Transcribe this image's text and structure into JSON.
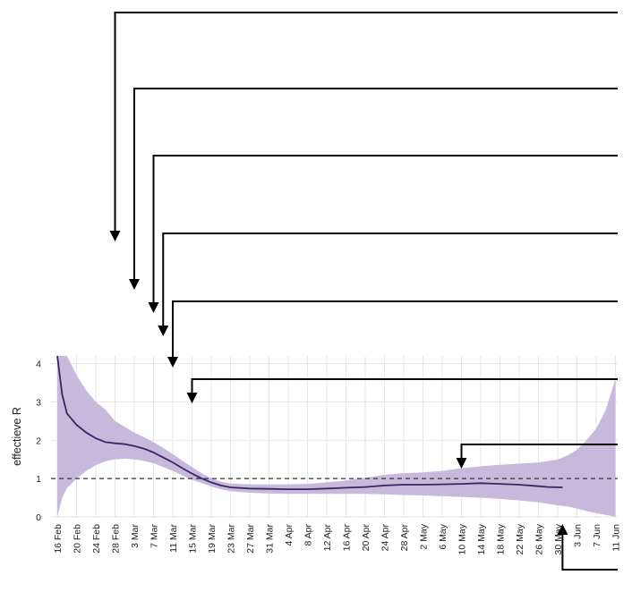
{
  "chart_data": {
    "type": "area",
    "ylabel": "effectieve R",
    "xlabel": "",
    "ylim": [
      0,
      4.2
    ],
    "yticks": [
      "0",
      "1",
      "2",
      "3",
      "4"
    ],
    "x_start": "16 Feb",
    "x_end": "11 Jun",
    "xticks": [
      "16 Feb",
      "20 Feb",
      "24 Feb",
      "28 Feb",
      "3 Mar",
      "7 Mar",
      "11 Mar",
      "15 Mar",
      "19 Mar",
      "23 Mar",
      "27 Mar",
      "31 Mar",
      "4 Apr",
      "8 Apr",
      "12 Apr",
      "16 Apr",
      "20 Apr",
      "24 Apr",
      "28 Apr",
      "2 May",
      "6 May",
      "10 May",
      "14 May",
      "18 May",
      "22 May",
      "26 May",
      "30 May",
      "3 Jun",
      "7 Jun",
      "11 Jun"
    ],
    "grid": true,
    "reference_line": {
      "y": 1,
      "style": "dashed"
    },
    "colors": {
      "line": "#3a2466",
      "band": "#c7b9db",
      "reference": "#333333",
      "grid": "#e6e6e6",
      "annotation": "#000000"
    },
    "series": [
      {
        "type": "line",
        "points": [
          [
            "16 Feb",
            4.2
          ],
          [
            "17 Feb",
            3.2
          ],
          [
            "18 Feb",
            2.7
          ],
          [
            "20 Feb",
            2.4
          ],
          [
            "22 Feb",
            2.2
          ],
          [
            "24 Feb",
            2.05
          ],
          [
            "26 Feb",
            1.95
          ],
          [
            "28 Feb",
            1.92
          ],
          [
            "1 Mar",
            1.9
          ],
          [
            "3 Mar",
            1.85
          ],
          [
            "5 Mar",
            1.78
          ],
          [
            "7 Mar",
            1.68
          ],
          [
            "9 Mar",
            1.55
          ],
          [
            "11 Mar",
            1.42
          ],
          [
            "13 Mar",
            1.27
          ],
          [
            "15 Mar",
            1.13
          ],
          [
            "17 Mar",
            1.0
          ],
          [
            "19 Mar",
            0.9
          ],
          [
            "21 Mar",
            0.82
          ],
          [
            "23 Mar",
            0.77
          ],
          [
            "27 Mar",
            0.74
          ],
          [
            "31 Mar",
            0.73
          ],
          [
            "4 Apr",
            0.72
          ],
          [
            "8 Apr",
            0.72
          ],
          [
            "12 Apr",
            0.74
          ],
          [
            "16 Apr",
            0.76
          ],
          [
            "20 Apr",
            0.78
          ],
          [
            "24 Apr",
            0.82
          ],
          [
            "28 Apr",
            0.84
          ],
          [
            "2 May",
            0.84
          ],
          [
            "6 May",
            0.85
          ],
          [
            "10 May",
            0.86
          ],
          [
            "14 May",
            0.88
          ],
          [
            "18 May",
            0.86
          ],
          [
            "22 May",
            0.84
          ],
          [
            "26 May",
            0.8
          ],
          [
            "28 May",
            0.78
          ],
          [
            "31 May",
            0.77
          ]
        ]
      },
      {
        "type": "band",
        "points": [
          [
            "16 Feb",
            0.0,
            4.2
          ],
          [
            "17 Feb",
            0.5,
            4.2
          ],
          [
            "18 Feb",
            0.75,
            4.2
          ],
          [
            "20 Feb",
            1.0,
            3.7
          ],
          [
            "22 Feb",
            1.2,
            3.3
          ],
          [
            "24 Feb",
            1.35,
            3.0
          ],
          [
            "26 Feb",
            1.45,
            2.8
          ],
          [
            "28 Feb",
            1.5,
            2.5
          ],
          [
            "1 Mar",
            1.52,
            2.35
          ],
          [
            "3 Mar",
            1.5,
            2.2
          ],
          [
            "5 Mar",
            1.46,
            2.08
          ],
          [
            "7 Mar",
            1.4,
            1.95
          ],
          [
            "9 Mar",
            1.3,
            1.8
          ],
          [
            "11 Mar",
            1.2,
            1.64
          ],
          [
            "13 Mar",
            1.08,
            1.46
          ],
          [
            "15 Mar",
            0.97,
            1.3
          ],
          [
            "17 Mar",
            0.88,
            1.14
          ],
          [
            "19 Mar",
            0.79,
            1.01
          ],
          [
            "21 Mar",
            0.72,
            0.92
          ],
          [
            "23 Mar",
            0.67,
            0.87
          ],
          [
            "27 Mar",
            0.63,
            0.85
          ],
          [
            "31 Mar",
            0.61,
            0.85
          ],
          [
            "4 Apr",
            0.6,
            0.85
          ],
          [
            "8 Apr",
            0.6,
            0.86
          ],
          [
            "12 Apr",
            0.6,
            0.9
          ],
          [
            "16 Apr",
            0.6,
            0.95
          ],
          [
            "20 Apr",
            0.6,
            1.02
          ],
          [
            "24 Apr",
            0.59,
            1.1
          ],
          [
            "28 Apr",
            0.57,
            1.14
          ],
          [
            "2 May",
            0.56,
            1.16
          ],
          [
            "6 May",
            0.54,
            1.2
          ],
          [
            "10 May",
            0.52,
            1.27
          ],
          [
            "14 May",
            0.5,
            1.32
          ],
          [
            "18 May",
            0.47,
            1.36
          ],
          [
            "22 May",
            0.43,
            1.39
          ],
          [
            "26 May",
            0.38,
            1.42
          ],
          [
            "30 May",
            0.3,
            1.5
          ],
          [
            "1 Jun",
            0.27,
            1.6
          ],
          [
            "3 Jun",
            0.22,
            1.75
          ],
          [
            "5 Jun",
            0.15,
            2.0
          ],
          [
            "7 Jun",
            0.1,
            2.3
          ],
          [
            "9 Jun",
            0.05,
            2.8
          ],
          [
            "10 Jun",
            0.03,
            3.2
          ],
          [
            "11 Jun",
            0.0,
            3.6
          ]
        ]
      }
    ],
    "annotations": [
      {
        "label": "",
        "style": "arrow-down",
        "date": "28 Feb",
        "y": 4.2
      },
      {
        "label": "",
        "style": "arrow-down",
        "date": "3 Mar",
        "y": 4.2
      },
      {
        "label": "",
        "style": "arrow-down",
        "date": "7 Mar",
        "y": 4.2
      },
      {
        "label": "",
        "style": "arrow-down",
        "date": "9 Mar",
        "y": 4.2
      },
      {
        "label": "",
        "style": "arrow-down",
        "date": "11 Mar",
        "y": 4.2
      },
      {
        "label": "",
        "style": "arrow-down",
        "date": "15 Mar",
        "y": 3.75
      },
      {
        "label": "",
        "style": "arrow-down",
        "date": "10 May",
        "y": 1.82
      },
      {
        "label": "",
        "style": "arrow-up",
        "date": "31 May",
        "y": 0.15
      }
    ]
  }
}
